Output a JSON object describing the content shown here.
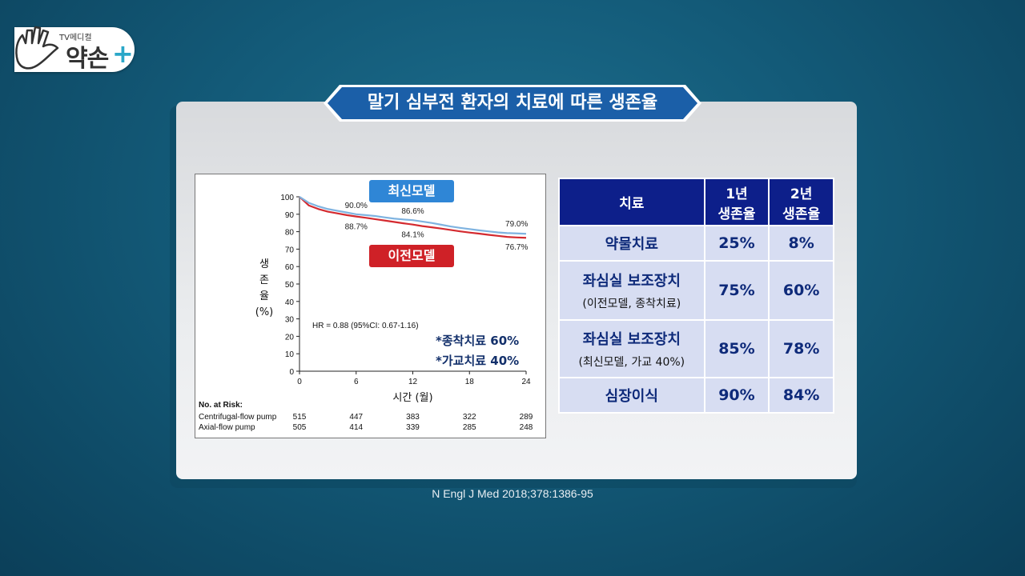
{
  "logo": {
    "small_text": "TV메디컬",
    "big_text": "약손",
    "plus": "+"
  },
  "title": "말기 심부전 환자의 치료에 따른 생존율",
  "chart_data": {
    "type": "line",
    "title": "",
    "xlabel": "시간 (월)",
    "ylabel": [
      "생",
      "존",
      "율",
      "(%)"
    ],
    "xlim": [
      0,
      24
    ],
    "ylim": [
      0,
      100
    ],
    "xticks": [
      0,
      6,
      12,
      18,
      24
    ],
    "yticks": [
      0,
      10,
      20,
      30,
      40,
      50,
      60,
      70,
      80,
      90,
      100
    ],
    "series": [
      {
        "name": "최신모델",
        "color": "#7fb3e0",
        "x": [
          0,
          1,
          2,
          3,
          4,
          5,
          6,
          7,
          8,
          9,
          10,
          11,
          12,
          13,
          14,
          15,
          16,
          17,
          18,
          19,
          20,
          21,
          22,
          23,
          24
        ],
        "y": [
          100,
          96.5,
          94.5,
          93,
          92,
          91,
          90.0,
          89.5,
          89,
          88.2,
          87.5,
          87,
          86.6,
          85.8,
          85,
          84,
          83,
          82.2,
          81.5,
          80.8,
          80.2,
          79.6,
          79.2,
          79.0,
          78.8
        ]
      },
      {
        "name": "이전모델",
        "color": "#d42a2f",
        "x": [
          0,
          1,
          2,
          3,
          4,
          5,
          6,
          7,
          8,
          9,
          10,
          11,
          12,
          13,
          14,
          15,
          16,
          17,
          18,
          19,
          20,
          21,
          22,
          23,
          24
        ],
        "y": [
          100,
          95,
          93,
          91.5,
          90.5,
          89.5,
          88.7,
          88,
          87.2,
          86.4,
          85.6,
          84.8,
          84.1,
          83.2,
          82.5,
          81.8,
          81,
          80.2,
          79.5,
          78.9,
          78.2,
          77.6,
          77,
          76.7,
          76.5
        ]
      }
    ],
    "annotations": [
      {
        "text": "90.0%",
        "x": 6,
        "y": 90.0
      },
      {
        "text": "86.6%",
        "x": 12,
        "y": 86.6
      },
      {
        "text": "79.0%",
        "x": 23,
        "y": 79.0
      },
      {
        "text": "88.7%",
        "x": 6,
        "y": 88.7
      },
      {
        "text": "84.1%",
        "x": 12,
        "y": 84.1
      },
      {
        "text": "76.7%",
        "x": 23,
        "y": 76.7
      }
    ],
    "hr_text": "HR = 0.88 (95%CI: 0.67-1.16)",
    "legend_tags": {
      "new": "최신모델",
      "old": "이전모델"
    },
    "notes": [
      "*종착치료 60%",
      "*가교치료 40%"
    ],
    "risk": {
      "header": "No. at Risk:",
      "rows": [
        {
          "label": "Centrifugal-flow pump",
          "values": [
            "515",
            "447",
            "383",
            "322",
            "289"
          ]
        },
        {
          "label": "Axial-flow pump",
          "values": [
            "505",
            "414",
            "339",
            "285",
            "248"
          ]
        }
      ]
    }
  },
  "table": {
    "headers": [
      "치료",
      "1년\n생존율",
      "2년\n생존율"
    ],
    "header_1_line1": "1년",
    "header_1_line2": "생존율",
    "header_2_line1": "2년",
    "header_2_line2": "생존율",
    "rows": [
      {
        "treatment": "약물치료",
        "sub": "",
        "y1": "25%",
        "y2": "8%"
      },
      {
        "treatment": "좌심실 보조장치",
        "sub": "(이전모델, 종착치료)",
        "y1": "75%",
        "y2": "60%"
      },
      {
        "treatment": "좌심실 보조장치",
        "sub": "(최신모델, 가교 40%)",
        "y1": "85%",
        "y2": "78%"
      },
      {
        "treatment": "심장이식",
        "sub": "",
        "y1": "90%",
        "y2": "84%"
      }
    ]
  },
  "source": "N Engl J Med 2018;378:1386-95",
  "colors": {
    "banner": "#1b5fa8",
    "table_header": "#0d1f8a",
    "table_cell": "#d7ddf2"
  }
}
